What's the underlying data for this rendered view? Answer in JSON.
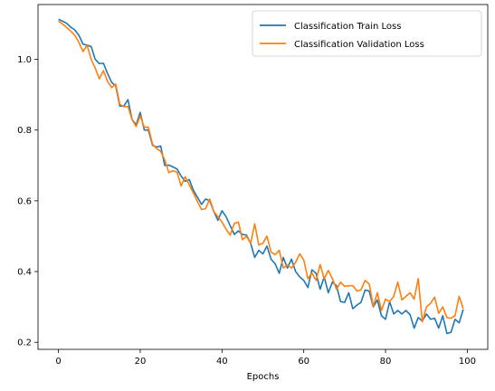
{
  "chart_data": {
    "type": "line",
    "title": "",
    "xlabel": "Epochs",
    "ylabel": "",
    "xlim": [
      -5,
      105
    ],
    "ylim": [
      0.18,
      1.155
    ],
    "xticks": [
      0,
      20,
      40,
      60,
      80,
      100
    ],
    "yticks": [
      0.2,
      0.4,
      0.6,
      0.8,
      1.0
    ],
    "xtick_labels": [
      "0",
      "20",
      "40",
      "60",
      "80",
      "100"
    ],
    "ytick_labels": [
      "0.2",
      "0.4",
      "0.6",
      "0.8",
      "1.0"
    ],
    "legend_position": "top-right",
    "grid": false,
    "x": [
      0,
      1,
      2,
      3,
      4,
      5,
      6,
      7,
      8,
      9,
      10,
      11,
      12,
      13,
      14,
      15,
      16,
      17,
      18,
      19,
      20,
      21,
      22,
      23,
      24,
      25,
      26,
      27,
      28,
      29,
      30,
      31,
      32,
      33,
      34,
      35,
      36,
      37,
      38,
      39,
      40,
      41,
      42,
      43,
      44,
      45,
      46,
      47,
      48,
      49,
      50,
      51,
      52,
      53,
      54,
      55,
      56,
      57,
      58,
      59,
      60,
      61,
      62,
      63,
      64,
      65,
      66,
      67,
      68,
      69,
      70,
      71,
      72,
      73,
      74,
      75,
      76,
      77,
      78,
      79,
      80,
      81,
      82,
      83,
      84,
      85,
      86,
      87,
      88,
      89,
      90,
      91,
      92,
      93,
      94,
      95,
      96,
      97,
      98,
      99
    ],
    "series": [
      {
        "name": "Classification Train Loss",
        "color": "#1f77b4",
        "values": [
          1.113,
          1.108,
          1.102,
          1.091,
          1.083,
          1.068,
          1.043,
          1.04,
          1.036,
          1.0,
          0.988,
          0.989,
          0.96,
          0.935,
          0.925,
          0.868,
          0.868,
          0.886,
          0.83,
          0.815,
          0.85,
          0.8,
          0.8,
          0.757,
          0.752,
          0.755,
          0.7,
          0.701,
          0.696,
          0.69,
          0.67,
          0.655,
          0.66,
          0.63,
          0.61,
          0.59,
          0.605,
          0.6,
          0.57,
          0.545,
          0.572,
          0.555,
          0.53,
          0.505,
          0.515,
          0.505,
          0.503,
          0.48,
          0.44,
          0.46,
          0.45,
          0.472,
          0.435,
          0.422,
          0.395,
          0.44,
          0.41,
          0.435,
          0.4,
          0.385,
          0.375,
          0.355,
          0.405,
          0.395,
          0.35,
          0.385,
          0.34,
          0.37,
          0.36,
          0.315,
          0.313,
          0.34,
          0.295,
          0.305,
          0.313,
          0.348,
          0.345,
          0.3,
          0.32,
          0.275,
          0.265,
          0.315,
          0.28,
          0.29,
          0.28,
          0.29,
          0.278,
          0.24,
          0.27,
          0.26,
          0.28,
          0.265,
          0.268,
          0.24,
          0.275,
          0.225,
          0.228,
          0.265,
          0.255,
          0.293
        ]
      },
      {
        "name": "Classification Validation Loss",
        "color": "#ff7f0e",
        "values": [
          1.108,
          1.1,
          1.09,
          1.08,
          1.068,
          1.048,
          1.022,
          1.04,
          1.0,
          0.975,
          0.945,
          0.968,
          0.938,
          0.92,
          0.93,
          0.873,
          0.866,
          0.867,
          0.83,
          0.81,
          0.84,
          0.808,
          0.808,
          0.76,
          0.748,
          0.74,
          0.716,
          0.68,
          0.685,
          0.681,
          0.642,
          0.668,
          0.645,
          0.622,
          0.598,
          0.575,
          0.578,
          0.605,
          0.57,
          0.555,
          0.54,
          0.52,
          0.503,
          0.536,
          0.54,
          0.49,
          0.5,
          0.48,
          0.535,
          0.475,
          0.48,
          0.5,
          0.455,
          0.448,
          0.46,
          0.41,
          0.418,
          0.41,
          0.426,
          0.45,
          0.433,
          0.38,
          0.396,
          0.375,
          0.42,
          0.38,
          0.403,
          0.38,
          0.35,
          0.37,
          0.358,
          0.36,
          0.36,
          0.345,
          0.348,
          0.375,
          0.365,
          0.302,
          0.34,
          0.29,
          0.322,
          0.315,
          0.33,
          0.37,
          0.32,
          0.33,
          0.34,
          0.322,
          0.38,
          0.258,
          0.3,
          0.31,
          0.328,
          0.282,
          0.3,
          0.27,
          0.268,
          0.275,
          0.33,
          0.295
        ]
      }
    ]
  }
}
